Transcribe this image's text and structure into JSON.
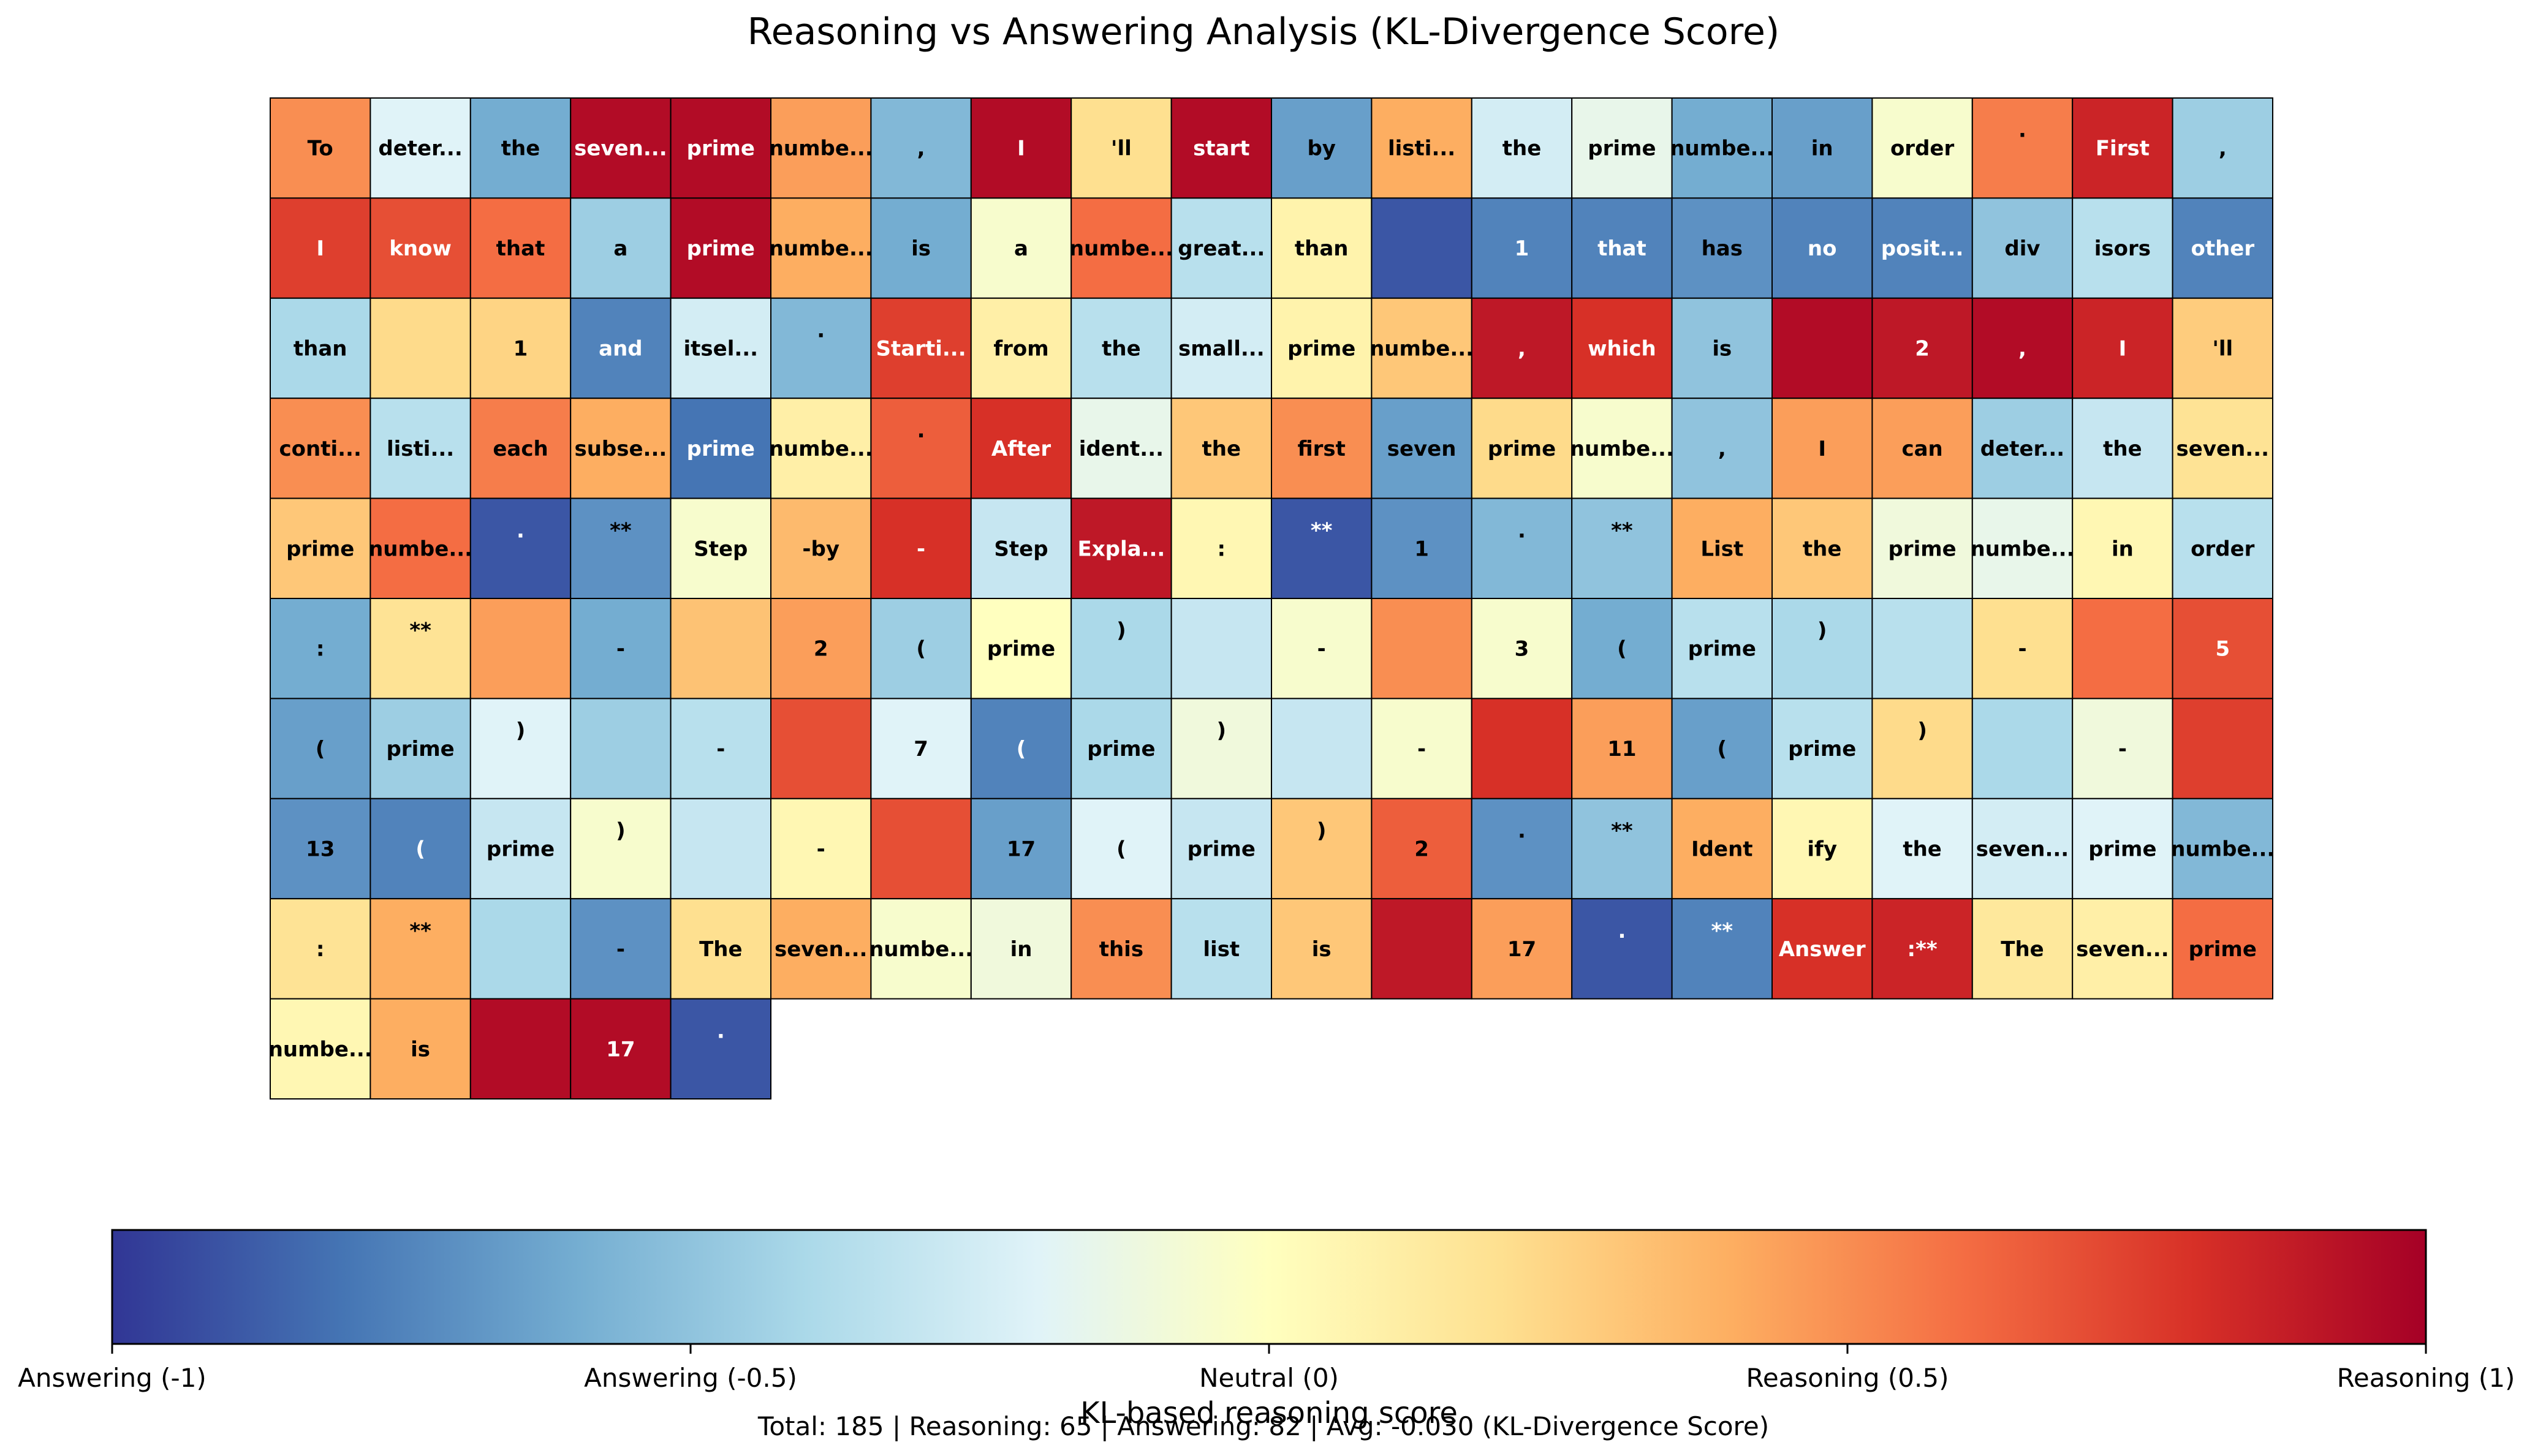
{
  "chart_data": {
    "type": "heatmap",
    "title": "Reasoning vs Answering Analysis (KL-Divergence Score)",
    "colorbar": {
      "label": "KL-based reasoning score",
      "range": [
        -1,
        1
      ],
      "colormap": "RdYlBu_r",
      "ticks": [
        -1,
        -0.5,
        0,
        0.5,
        1
      ],
      "tick_labels": [
        "Answering (-1)",
        "Answering (-0.5)",
        "Neutral (0)",
        "Reasoning (0.5)",
        "Reasoning (1)"
      ]
    },
    "summary": "Total: 185 | Reasoning: 65 | Answering: 82 | Avg: -0.030 (KL-Divergence Score)",
    "columns": 20,
    "tokens": [
      {
        "t": "To",
        "v": 0.5
      },
      {
        "t": "deter...",
        "v": -0.2
      },
      {
        "t": "the",
        "v": -0.6
      },
      {
        "t": "seven...",
        "v": 0.95
      },
      {
        "t": "prime",
        "v": 0.95
      },
      {
        "t": "numbe...",
        "v": 0.45
      },
      {
        "t": ",",
        "v": -0.55
      },
      {
        "t": "I",
        "v": 0.95
      },
      {
        "t": "'ll",
        "v": 0.2
      },
      {
        "t": "start",
        "v": 0.95
      },
      {
        "t": "by",
        "v": -0.65
      },
      {
        "t": "listi...",
        "v": 0.4
      },
      {
        "t": "the",
        "v": -0.25
      },
      {
        "t": "prime",
        "v": -0.15
      },
      {
        "t": "numbe...",
        "v": -0.6
      },
      {
        "t": "in",
        "v": -0.65
      },
      {
        "t": "order",
        "v": -0.05
      },
      {
        "t": ".",
        "v": 0.55
      },
      {
        "t": "First",
        "v": 0.85
      },
      {
        "t": ",",
        "v": -0.45
      },
      {
        "t": "I",
        "v": 0.75
      },
      {
        "t": "know",
        "v": 0.7
      },
      {
        "t": "that",
        "v": 0.6
      },
      {
        "t": "a",
        "v": -0.45
      },
      {
        "t": "prime",
        "v": 0.95
      },
      {
        "t": "numbe...",
        "v": 0.4
      },
      {
        "t": "is",
        "v": -0.6
      },
      {
        "t": "a",
        "v": -0.05
      },
      {
        "t": "numbe...",
        "v": 0.6
      },
      {
        "t": "great...",
        "v": -0.35
      },
      {
        "t": "than",
        "v": 0.08
      },
      {
        "t": "",
        "v": -0.9
      },
      {
        "t": "1",
        "v": -0.75
      },
      {
        "t": "that",
        "v": -0.75
      },
      {
        "t": "has",
        "v": -0.7
      },
      {
        "t": "no",
        "v": -0.75
      },
      {
        "t": "posit...",
        "v": -0.75
      },
      {
        "t": "div",
        "v": -0.5
      },
      {
        "t": "isors",
        "v": -0.35
      },
      {
        "t": "other",
        "v": -0.75
      },
      {
        "t": "than",
        "v": -0.4
      },
      {
        "t": "",
        "v": 0.22
      },
      {
        "t": "1",
        "v": 0.25
      },
      {
        "t": "and",
        "v": -0.75
      },
      {
        "t": "itsel...",
        "v": -0.25
      },
      {
        "t": ".",
        "v": -0.55
      },
      {
        "t": "Starti...",
        "v": 0.75
      },
      {
        "t": "from",
        "v": 0.1
      },
      {
        "t": "the",
        "v": -0.35
      },
      {
        "t": "small...",
        "v": -0.25
      },
      {
        "t": "prime",
        "v": 0.08
      },
      {
        "t": "numbe...",
        "v": 0.3
      },
      {
        "t": ",",
        "v": 0.9
      },
      {
        "t": "which",
        "v": 0.8
      },
      {
        "t": "is",
        "v": -0.5
      },
      {
        "t": "",
        "v": 0.95
      },
      {
        "t": "2",
        "v": 0.9
      },
      {
        "t": ",",
        "v": 0.95
      },
      {
        "t": "I",
        "v": 0.85
      },
      {
        "t": "'ll",
        "v": 0.28
      },
      {
        "t": "conti...",
        "v": 0.5
      },
      {
        "t": "listi...",
        "v": -0.35
      },
      {
        "t": "each",
        "v": 0.55
      },
      {
        "t": "subse...",
        "v": 0.4
      },
      {
        "t": "prime",
        "v": -0.8
      },
      {
        "t": "numbe...",
        "v": 0.1
      },
      {
        "t": ".",
        "v": 0.65
      },
      {
        "t": "After",
        "v": 0.8
      },
      {
        "t": "ident...",
        "v": -0.15
      },
      {
        "t": "the",
        "v": 0.3
      },
      {
        "t": "first",
        "v": 0.5
      },
      {
        "t": "seven",
        "v": -0.65
      },
      {
        "t": "prime",
        "v": 0.22
      },
      {
        "t": "numbe...",
        "v": -0.05
      },
      {
        "t": ",",
        "v": -0.5
      },
      {
        "t": "I",
        "v": 0.45
      },
      {
        "t": "can",
        "v": 0.45
      },
      {
        "t": "deter...",
        "v": -0.45
      },
      {
        "t": "the",
        "v": -0.3
      },
      {
        "t": "seven...",
        "v": 0.18
      },
      {
        "t": "prime",
        "v": 0.3
      },
      {
        "t": "numbe...",
        "v": 0.6
      },
      {
        "t": ".",
        "v": -0.9
      },
      {
        "t": "**",
        "v": -0.7
      },
      {
        "t": "Step",
        "v": -0.05
      },
      {
        "t": "-by",
        "v": 0.35
      },
      {
        "t": "-",
        "v": 0.8
      },
      {
        "t": "Step",
        "v": -0.3
      },
      {
        "t": "Expla...",
        "v": 0.9
      },
      {
        "t": ":",
        "v": 0.05
      },
      {
        "t": "**",
        "v": -0.9
      },
      {
        "t": "1",
        "v": -0.7
      },
      {
        "t": ".",
        "v": -0.55
      },
      {
        "t": "**",
        "v": -0.5
      },
      {
        "t": "List",
        "v": 0.4
      },
      {
        "t": "the",
        "v": 0.3
      },
      {
        "t": "prime",
        "v": -0.1
      },
      {
        "t": "numbe...",
        "v": -0.15
      },
      {
        "t": "in",
        "v": 0.05
      },
      {
        "t": "order",
        "v": -0.35
      },
      {
        "t": ":",
        "v": -0.6
      },
      {
        "t": "**",
        "v": 0.18
      },
      {
        "t": "",
        "v": 0.45
      },
      {
        "t": "-",
        "v": -0.6
      },
      {
        "t": "",
        "v": 0.32
      },
      {
        "t": "2",
        "v": 0.45
      },
      {
        "t": "(",
        "v": -0.45
      },
      {
        "t": "prime",
        "v": 0.0
      },
      {
        "t": ")",
        "v": -0.4
      },
      {
        "t": "",
        "v": -0.3
      },
      {
        "t": "-",
        "v": -0.05
      },
      {
        "t": "",
        "v": 0.5
      },
      {
        "t": "3",
        "v": -0.05
      },
      {
        "t": "(",
        "v": -0.6
      },
      {
        "t": "prime",
        "v": -0.35
      },
      {
        "t": ")",
        "v": -0.4
      },
      {
        "t": "",
        "v": -0.35
      },
      {
        "t": "-",
        "v": 0.2
      },
      {
        "t": "",
        "v": 0.6
      },
      {
        "t": "5",
        "v": 0.7
      },
      {
        "t": "(",
        "v": -0.65
      },
      {
        "t": "prime",
        "v": -0.45
      },
      {
        "t": ")",
        "v": -0.2
      },
      {
        "t": "",
        "v": -0.45
      },
      {
        "t": "-",
        "v": -0.35
      },
      {
        "t": "",
        "v": 0.7
      },
      {
        "t": "7",
        "v": -0.2
      },
      {
        "t": "(",
        "v": -0.75
      },
      {
        "t": "prime",
        "v": -0.4
      },
      {
        "t": ")",
        "v": -0.1
      },
      {
        "t": "",
        "v": -0.3
      },
      {
        "t": "-",
        "v": -0.05
      },
      {
        "t": "",
        "v": 0.8
      },
      {
        "t": "11",
        "v": 0.45
      },
      {
        "t": "(",
        "v": -0.65
      },
      {
        "t": "prime",
        "v": -0.35
      },
      {
        "t": ")",
        "v": 0.22
      },
      {
        "t": "",
        "v": -0.4
      },
      {
        "t": "-",
        "v": -0.1
      },
      {
        "t": "",
        "v": 0.75
      },
      {
        "t": "13",
        "v": -0.7
      },
      {
        "t": "(",
        "v": -0.75
      },
      {
        "t": "prime",
        "v": -0.3
      },
      {
        "t": ")",
        "v": -0.05
      },
      {
        "t": "",
        "v": -0.3
      },
      {
        "t": "-",
        "v": 0.05
      },
      {
        "t": "",
        "v": 0.7
      },
      {
        "t": "17",
        "v": -0.65
      },
      {
        "t": "(",
        "v": -0.2
      },
      {
        "t": "prime",
        "v": -0.3
      },
      {
        "t": ")",
        "v": 0.3
      },
      {
        "t": "2",
        "v": 0.65
      },
      {
        "t": ".",
        "v": -0.7
      },
      {
        "t": "**",
        "v": -0.5
      },
      {
        "t": "Ident",
        "v": 0.4
      },
      {
        "t": "ify",
        "v": 0.05
      },
      {
        "t": "the",
        "v": -0.2
      },
      {
        "t": "seven...",
        "v": -0.25
      },
      {
        "t": "prime",
        "v": -0.2
      },
      {
        "t": "numbe...",
        "v": -0.55
      },
      {
        "t": ":",
        "v": 0.18
      },
      {
        "t": "**",
        "v": 0.4
      },
      {
        "t": "",
        "v": -0.4
      },
      {
        "t": "-",
        "v": -0.7
      },
      {
        "t": "The",
        "v": 0.2
      },
      {
        "t": "seven...",
        "v": 0.4
      },
      {
        "t": "numbe...",
        "v": -0.05
      },
      {
        "t": "in",
        "v": -0.1
      },
      {
        "t": "this",
        "v": 0.5
      },
      {
        "t": "list",
        "v": -0.35
      },
      {
        "t": "is",
        "v": 0.3
      },
      {
        "t": "",
        "v": 0.9
      },
      {
        "t": "17",
        "v": 0.45
      },
      {
        "t": ".",
        "v": -0.9
      },
      {
        "t": "**",
        "v": -0.75
      },
      {
        "t": "Answer",
        "v": 0.8
      },
      {
        "t": ":**",
        "v": 0.85
      },
      {
        "t": "The",
        "v": 0.15
      },
      {
        "t": "seven...",
        "v": 0.1
      },
      {
        "t": "prime",
        "v": 0.6
      },
      {
        "t": "numbe...",
        "v": 0.05
      },
      {
        "t": "is",
        "v": 0.4
      },
      {
        "t": "",
        "v": 0.95
      },
      {
        "t": "17",
        "v": 0.95
      },
      {
        "t": ".",
        "v": -0.9
      }
    ]
  }
}
